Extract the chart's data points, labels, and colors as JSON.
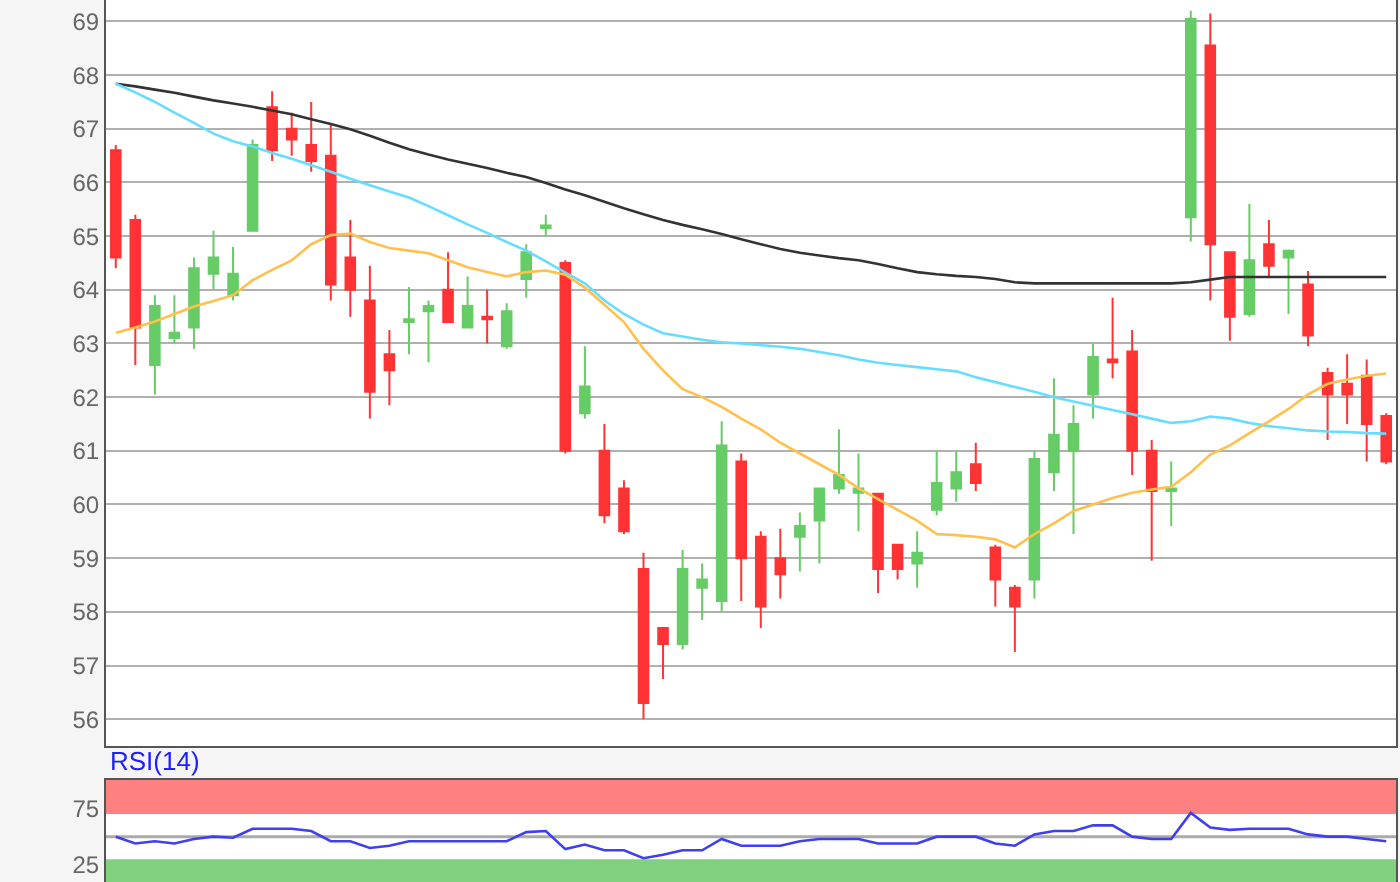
{
  "chart_data": [
    {
      "type": "candlestick",
      "categories": [
        null,
        null,
        null,
        null,
        null,
        null,
        null,
        null,
        null,
        null,
        null,
        null,
        null,
        null,
        null,
        null,
        null,
        null,
        null,
        null,
        null,
        null,
        null,
        null,
        null,
        null,
        null,
        null,
        null,
        null,
        null,
        null,
        null,
        null,
        null,
        null,
        null,
        null,
        null,
        null,
        null,
        null,
        null,
        null,
        null,
        null,
        null,
        null,
        null,
        null,
        null,
        null,
        null,
        null,
        null,
        null,
        null,
        null,
        null,
        null,
        null,
        null,
        null,
        null,
        null,
        null
      ],
      "ohlc": [
        [
          66.6,
          66.7,
          64.4,
          64.6
        ],
        [
          65.3,
          65.4,
          62.6,
          63.3
        ],
        [
          62.6,
          63.9,
          62.05,
          63.7
        ],
        [
          63.1,
          63.9,
          63.0,
          63.2
        ],
        [
          63.3,
          64.6,
          62.9,
          64.4
        ],
        [
          64.3,
          65.1,
          64.0,
          64.6
        ],
        [
          63.9,
          64.8,
          63.8,
          64.3
        ],
        [
          65.1,
          66.8,
          65.1,
          66.7
        ],
        [
          67.4,
          67.7,
          66.4,
          66.6
        ],
        [
          67.0,
          67.3,
          66.5,
          66.8
        ],
        [
          66.7,
          67.5,
          66.2,
          66.4
        ],
        [
          66.5,
          67.1,
          63.8,
          64.1
        ],
        [
          64.6,
          65.3,
          63.5,
          64.0
        ],
        [
          63.8,
          64.45,
          61.6,
          62.1
        ],
        [
          62.8,
          63.25,
          61.85,
          62.5
        ],
        [
          63.4,
          64.05,
          62.8,
          63.45
        ],
        [
          63.6,
          63.8,
          62.65,
          63.7
        ],
        [
          64.0,
          64.7,
          63.4,
          63.4
        ],
        [
          63.3,
          64.25,
          63.3,
          63.7
        ],
        [
          63.5,
          64.0,
          63.0,
          63.45
        ],
        [
          62.95,
          63.75,
          62.9,
          63.6
        ],
        [
          64.2,
          64.85,
          63.85,
          64.7
        ],
        [
          65.15,
          65.4,
          65.0,
          65.2
        ],
        [
          64.5,
          64.55,
          60.95,
          61.0
        ],
        [
          61.7,
          62.95,
          61.6,
          62.2
        ],
        [
          61.0,
          61.5,
          59.65,
          59.8
        ],
        [
          60.3,
          60.45,
          59.45,
          59.5
        ],
        [
          58.8,
          59.1,
          56.0,
          56.3
        ],
        [
          57.7,
          57.7,
          56.75,
          57.4
        ],
        [
          57.4,
          59.15,
          57.3,
          58.8
        ],
        [
          58.45,
          58.9,
          57.85,
          58.6
        ],
        [
          58.2,
          61.55,
          58.0,
          61.1
        ],
        [
          60.8,
          60.95,
          58.2,
          59.0
        ],
        [
          59.4,
          59.5,
          57.7,
          58.1
        ],
        [
          59.0,
          59.55,
          58.25,
          58.7
        ],
        [
          59.4,
          59.85,
          58.75,
          59.6
        ],
        [
          59.7,
          60.3,
          58.9,
          60.3
        ],
        [
          60.3,
          61.4,
          60.2,
          60.55
        ],
        [
          60.22,
          60.95,
          59.5,
          60.3
        ],
        [
          60.2,
          60.2,
          58.35,
          58.8
        ],
        [
          59.25,
          59.25,
          58.6,
          58.8
        ],
        [
          58.9,
          59.5,
          58.45,
          59.1
        ],
        [
          59.9,
          61.0,
          59.8,
          60.4
        ],
        [
          60.3,
          61.0,
          60.05,
          60.6
        ],
        [
          60.75,
          61.15,
          60.25,
          60.4
        ],
        [
          59.2,
          59.25,
          58.1,
          58.6
        ],
        [
          58.45,
          58.5,
          57.25,
          58.1
        ],
        [
          58.6,
          61.0,
          58.25,
          60.85
        ],
        [
          60.6,
          62.35,
          60.25,
          61.3
        ],
        [
          61.0,
          61.85,
          59.45,
          61.5
        ],
        [
          62.05,
          63.0,
          61.6,
          62.75
        ],
        [
          62.7,
          63.85,
          62.35,
          62.65
        ],
        [
          62.85,
          63.25,
          60.55,
          61.0
        ],
        [
          61.0,
          61.2,
          58.95,
          60.25
        ],
        [
          60.25,
          60.8,
          59.6,
          60.3
        ],
        [
          65.35,
          69.2,
          64.9,
          69.05
        ],
        [
          68.55,
          69.15,
          63.8,
          64.85
        ],
        [
          64.7,
          64.7,
          63.05,
          63.5
        ],
        [
          63.55,
          65.6,
          63.5,
          64.55
        ],
        [
          64.85,
          65.3,
          64.25,
          64.45
        ],
        [
          64.6,
          64.75,
          63.55,
          64.73
        ],
        [
          64.1,
          64.35,
          62.95,
          63.15
        ],
        [
          62.45,
          62.55,
          61.2,
          62.05
        ],
        [
          62.25,
          62.8,
          61.5,
          62.05
        ],
        [
          62.4,
          62.7,
          60.8,
          61.5
        ],
        [
          61.65,
          61.7,
          60.75,
          60.8
        ]
      ],
      "colors": [
        "#ff3333",
        "#ff3333",
        "#66cc66",
        "#66cc66",
        "#66cc66",
        "#66cc66",
        "#66cc66",
        "#66cc66",
        "#ff3333",
        "#ff3333",
        "#ff3333",
        "#ff3333",
        "#ff3333",
        "#ff3333",
        "#ff3333",
        "#66cc66",
        "#66cc66",
        "#ff3333",
        "#66cc66",
        "#ff3333",
        "#66cc66",
        "#66cc66",
        "#66cc66",
        "#ff3333",
        "#66cc66",
        "#ff3333",
        "#ff3333",
        "#ff3333",
        "#ff3333",
        "#66cc66",
        "#66cc66",
        "#66cc66",
        "#ff3333",
        "#ff3333",
        "#ff3333",
        "#66cc66",
        "#66cc66",
        "#66cc66",
        "#66cc66",
        "#ff3333",
        "#ff3333",
        "#66cc66",
        "#66cc66",
        "#66cc66",
        "#ff3333",
        "#ff3333",
        "#ff3333",
        "#66cc66",
        "#66cc66",
        "#66cc66",
        "#66cc66",
        "#ff3333",
        "#ff3333",
        "#ff3333",
        "#66cc66",
        "#66cc66",
        "#ff3333",
        "#ff3333",
        "#66cc66",
        "#ff3333",
        "#66cc66",
        "#ff3333",
        "#ff3333",
        "#ff3333",
        "#ff3333",
        "#ff3333"
      ],
      "series": [
        {
          "type": "line",
          "color": "#333333",
          "values": [
            67.84,
            67.79,
            67.73,
            67.67,
            67.6,
            67.53,
            67.47,
            67.41,
            67.34,
            67.27,
            67.18,
            67.09,
            66.99,
            66.87,
            66.74,
            66.62,
            66.52,
            66.43,
            66.35,
            66.27,
            66.18,
            66.1,
            65.99,
            65.87,
            65.76,
            65.64,
            65.52,
            65.41,
            65.3,
            65.21,
            65.13,
            65.04,
            64.94,
            64.85,
            64.76,
            64.69,
            64.64,
            64.59,
            64.55,
            64.48,
            64.4,
            64.33,
            64.29,
            64.26,
            64.24,
            64.2,
            64.14,
            64.12,
            64.12,
            64.12,
            64.12,
            64.12,
            64.12,
            64.12,
            64.12,
            64.14,
            64.19,
            64.24,
            64.24,
            64.24,
            64.24,
            64.24,
            64.24,
            64.24,
            64.24,
            64.24
          ]
        },
        {
          "type": "line",
          "color": "#66ddff",
          "values": [
            67.84,
            67.68,
            67.5,
            67.3,
            67.11,
            66.91,
            66.77,
            66.67,
            66.55,
            66.44,
            66.32,
            66.2,
            66.07,
            65.95,
            65.83,
            65.72,
            65.56,
            65.39,
            65.22,
            65.06,
            64.89,
            64.73,
            64.53,
            64.32,
            64.12,
            63.8,
            63.55,
            63.35,
            63.19,
            63.13,
            63.07,
            63.02,
            63.0,
            62.97,
            62.94,
            62.9,
            62.84,
            62.78,
            62.7,
            62.64,
            62.6,
            62.56,
            62.52,
            62.48,
            62.37,
            62.28,
            62.19,
            62.1,
            62.0,
            61.92,
            61.84,
            61.76,
            61.68,
            61.6,
            61.52,
            61.55,
            61.64,
            61.6,
            61.52,
            61.46,
            61.42,
            61.38,
            61.36,
            61.35,
            61.33,
            61.32
          ]
        },
        {
          "type": "line",
          "color": "#ffc04d",
          "values": [
            63.2,
            63.3,
            63.41,
            63.55,
            63.69,
            63.79,
            63.9,
            64.18,
            64.37,
            64.55,
            64.85,
            65.02,
            65.05,
            64.89,
            64.78,
            64.73,
            64.68,
            64.55,
            64.42,
            64.33,
            64.25,
            64.33,
            64.36,
            64.28,
            64.04,
            63.72,
            63.4,
            62.9,
            62.5,
            62.15,
            62.0,
            61.82,
            61.6,
            61.4,
            61.15,
            60.95,
            60.75,
            60.55,
            60.3,
            60.1,
            59.9,
            59.7,
            59.45,
            59.43,
            59.4,
            59.35,
            59.2,
            59.45,
            59.65,
            59.88,
            60.0,
            60.12,
            60.22,
            60.28,
            60.33,
            60.6,
            60.93,
            61.1,
            61.33,
            61.55,
            61.78,
            62.05,
            62.25,
            62.33,
            62.4,
            62.44
          ]
        }
      ],
      "ylim": [
        55.5,
        69.4
      ],
      "yticks": [
        56,
        57,
        58,
        59,
        60,
        61,
        62,
        63,
        64,
        65,
        66,
        67,
        68,
        69
      ],
      "grid": "y",
      "tick_labels": "y"
    },
    {
      "type": "line",
      "title": "RSI(14)",
      "categories": [
        null,
        null,
        null,
        null,
        null,
        null,
        null,
        null,
        null,
        null,
        null,
        null,
        null,
        null,
        null,
        null,
        null,
        null,
        null,
        null,
        null,
        null,
        null,
        null,
        null,
        null,
        null,
        null,
        null,
        null,
        null,
        null,
        null,
        null,
        null,
        null,
        null,
        null,
        null,
        null,
        null,
        null,
        null,
        null,
        null,
        null,
        null,
        null,
        null,
        null,
        null,
        null,
        null,
        null,
        null,
        null,
        null,
        null,
        null,
        null,
        null,
        null,
        null,
        null,
        null,
        null
      ],
      "series": [
        {
          "color": "#3f3ff0",
          "values": [
            50,
            44,
            46,
            44,
            48,
            50,
            49,
            57,
            57,
            57,
            55,
            46,
            46,
            40,
            42,
            46,
            46,
            46,
            46,
            46,
            46,
            54,
            55,
            39,
            43,
            38,
            38,
            31,
            34,
            38,
            38,
            48,
            42,
            42,
            42,
            46,
            48,
            48,
            48,
            44,
            44,
            44,
            50,
            50,
            50,
            44,
            42,
            52,
            55,
            55,
            60,
            60,
            50,
            48,
            48,
            71,
            58,
            56,
            57,
            57,
            57,
            52,
            50,
            50,
            48,
            46
          ]
        }
      ],
      "ylim": [
        10,
        100
      ],
      "yticks": [
        25,
        75
      ],
      "tick_labels": "y",
      "bands": [
        {
          "axis": "y",
          "from": 70,
          "to": 100,
          "color": "#ff8080"
        },
        {
          "axis": "y",
          "from": 10,
          "to": 30,
          "color": "#80d080"
        }
      ],
      "ref_lines": [
        {
          "axis": "y",
          "value": 50,
          "color": "#aaaaaa"
        }
      ]
    }
  ]
}
